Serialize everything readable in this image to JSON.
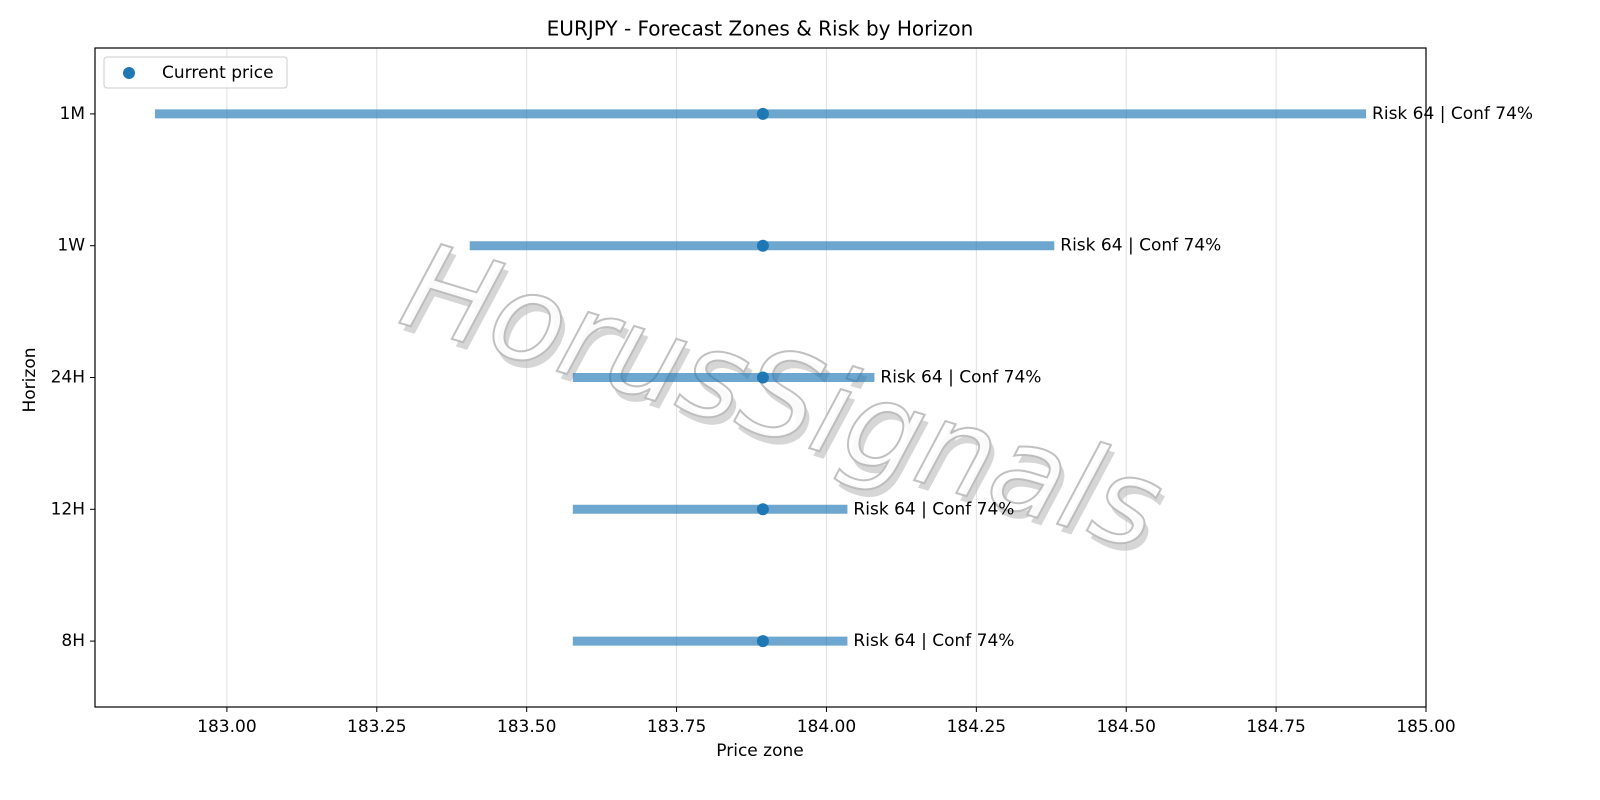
{
  "chart_data": {
    "type": "range",
    "title": "EURJPY - Forecast Zones & Risk by Horizon",
    "x_label": "Price zone",
    "y_label": "Horizon",
    "watermark": "HorusSignals",
    "categories": [
      "1M",
      "1W",
      "24H",
      "12H",
      "8H"
    ],
    "ranges": {
      "color": "#1f77b4",
      "low": [
        182.88,
        183.405,
        183.577,
        183.577,
        183.577
      ],
      "high": [
        184.9,
        184.38,
        184.08,
        184.035,
        184.035
      ]
    },
    "series": [
      {
        "name": "Current price",
        "color": "#1f77b4",
        "values": [
          183.894,
          183.894,
          183.894,
          183.894,
          183.894
        ]
      }
    ],
    "annotations": [
      "Risk 64 | Conf 74%",
      "Risk 64 | Conf 74%",
      "Risk 64 | Conf 74%",
      "Risk 64 | Conf 74%",
      "Risk 64 | Conf 74%"
    ],
    "xlim": [
      182.78,
      185.0
    ],
    "xticks": [
      {
        "value": 183,
        "label": "183.00"
      },
      {
        "value": 183.25,
        "label": "183.25"
      },
      {
        "value": 183.5,
        "label": "183.50"
      },
      {
        "value": 183.75,
        "label": "183.75"
      },
      {
        "value": 184,
        "label": "184.00"
      },
      {
        "value": 184.25,
        "label": "184.25"
      },
      {
        "value": 184.5,
        "label": "184.50"
      },
      {
        "value": 184.75,
        "label": "184.75"
      },
      {
        "value": 185,
        "label": "185.00"
      }
    ],
    "grid": true,
    "legend": "upper left"
  }
}
